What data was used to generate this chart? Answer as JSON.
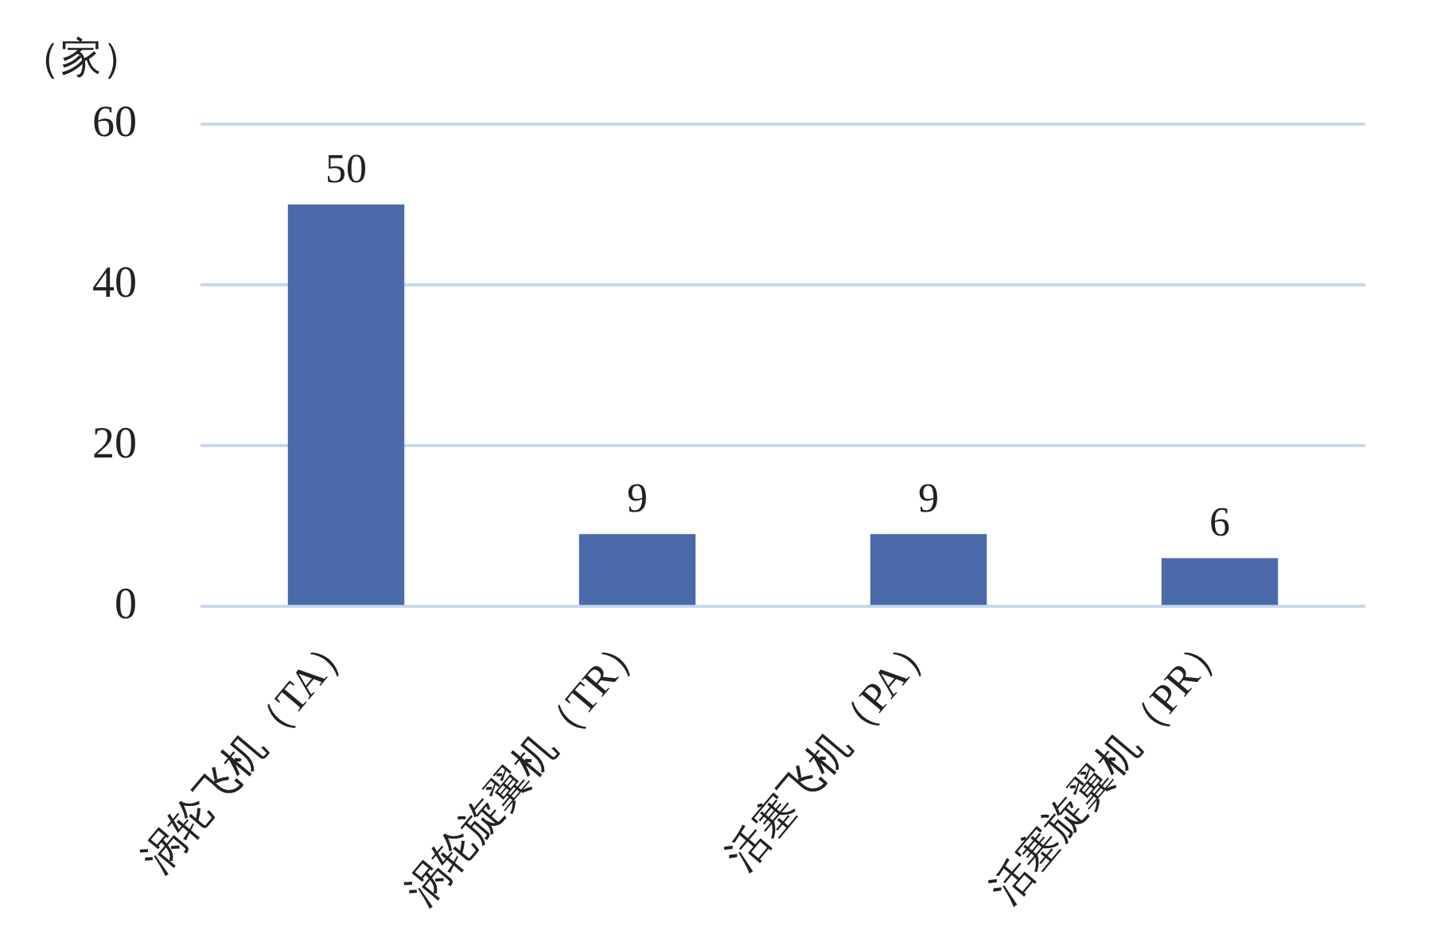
{
  "chart_data": {
    "type": "bar",
    "ylabel": "（家）",
    "categories": [
      "涡轮飞机（TA）",
      "涡轮旋翼机（TR）",
      "活塞飞机（PA）",
      "活塞旋翼机（PR）"
    ],
    "values": [
      50,
      9,
      9,
      6
    ],
    "color": "#4a6aab",
    "ylim": [
      0,
      60
    ],
    "yticks": [
      0,
      20,
      40,
      60
    ],
    "grid": "y",
    "data_labels": true,
    "legend": false
  }
}
